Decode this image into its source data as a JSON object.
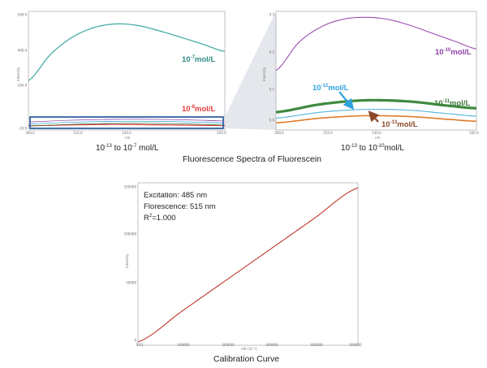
{
  "panel_left": {
    "caption": {
      "pre": "10",
      "e1": "-13",
      "mid": " to 10",
      "e2": "-7",
      "post": " mol/L"
    },
    "label_top": {
      "base": "10",
      "exp": "-7",
      "unit": "mol/L",
      "color": "#2f8a85"
    },
    "label_low": {
      "base": "10",
      "exp": "-8",
      "unit": "mol/L",
      "color": "#e03a3a"
    },
    "y_ticks": [
      "500.0",
      "400.0",
      "200.0",
      "-10.0"
    ],
    "x_ticks": [
      "500.0",
      "515.0",
      "530.0",
      "545.0"
    ],
    "ylabel": "Intensity",
    "xlabel": "nm",
    "zoom_box_color": "#1a4f96"
  },
  "panel_right": {
    "caption": {
      "pre": "10",
      "e1": "-13",
      "mid": " to 10",
      "e2": "-10",
      "post": "mol/L"
    },
    "labels": [
      {
        "base": "10",
        "exp": "-10",
        "unit": "mol/L",
        "color": "#8e3fa6"
      },
      {
        "base": "10",
        "exp": "-12",
        "unit": "mol/L",
        "color": "#2ea3dd"
      },
      {
        "base": "10",
        "exp": "-11",
        "unit": "mol/L",
        "color": "#3c7a3c"
      },
      {
        "base": "10",
        "exp": "-13",
        "unit": "mol/L",
        "color": "#8b4a2a"
      }
    ],
    "y_ticks": [
      "0.3",
      "0.2",
      "0.1",
      "0.0"
    ],
    "x_ticks": [
      "500.0",
      "515.0",
      "530.0",
      "545.0"
    ],
    "ylabel": "Intensity",
    "xlabel": "nm"
  },
  "main_title": "Fluorescence Spectra of Fluorescein",
  "calibration": {
    "notes": {
      "excitation": "Excitation: 485 nm",
      "florescence": "Florescence: 515 nm",
      "r2_pre": "R",
      "r2_exp": "2",
      "r2_post": "=1.000"
    },
    "y_ticks": [
      "150000",
      "100000",
      "50000",
      "0"
    ],
    "x_ticks": [
      "0.01",
      "100000",
      "200000",
      "300000",
      "400000",
      "500000"
    ],
    "ylabel": "Intensity",
    "xlabel": "nM (10⁻⁹)",
    "caption": "Calibration Curve",
    "line_color": "#c0392b"
  },
  "chart_data": [
    {
      "type": "line",
      "title": "",
      "xlabel": "nm",
      "ylabel": "Intensity",
      "xlim": [
        500,
        545
      ],
      "ylim": [
        -10,
        500
      ],
      "series": [
        {
          "name": "10-7mol/L",
          "x": [
            500,
            505,
            510,
            515,
            520,
            525,
            530,
            535,
            540,
            545
          ],
          "y": [
            210,
            330,
            410,
            455,
            472,
            465,
            440,
            410,
            378,
            345
          ]
        },
        {
          "name": "10-8mol/L",
          "x": [
            500,
            510,
            520,
            530,
            545
          ],
          "y": [
            2,
            6,
            8,
            6,
            3
          ]
        }
      ]
    },
    {
      "type": "line",
      "title": "",
      "xlabel": "nm",
      "ylabel": "Intensity",
      "xlim": [
        500,
        545
      ],
      "ylim": [
        0,
        0.3
      ],
      "series": [
        {
          "name": "10-10mol/L",
          "x": [
            500,
            505,
            510,
            515,
            520,
            525,
            530,
            535,
            540,
            545
          ],
          "y": [
            0.15,
            0.22,
            0.26,
            0.28,
            0.285,
            0.28,
            0.265,
            0.245,
            0.225,
            0.205
          ]
        },
        {
          "name": "10-11mol/L",
          "x": [
            500,
            510,
            520,
            530,
            540,
            545
          ],
          "y": [
            0.045,
            0.065,
            0.075,
            0.072,
            0.06,
            0.055
          ]
        },
        {
          "name": "10-12mol/L",
          "x": [
            500,
            510,
            520,
            530,
            540,
            545
          ],
          "y": [
            0.03,
            0.045,
            0.052,
            0.05,
            0.04,
            0.035
          ]
        },
        {
          "name": "10-13mol/L",
          "x": [
            500,
            510,
            520,
            530,
            540,
            545
          ],
          "y": [
            0.018,
            0.03,
            0.036,
            0.034,
            0.026,
            0.022
          ]
        }
      ]
    },
    {
      "type": "line",
      "title": "Calibration Curve",
      "xlabel": "nM (10⁻⁹)",
      "ylabel": "Intensity",
      "xlim": [
        0,
        500000
      ],
      "ylim": [
        0,
        160000
      ],
      "series": [
        {
          "name": "",
          "x": [
            0,
            100000,
            200000,
            300000,
            400000,
            500000
          ],
          "y": [
            0,
            31000,
            62000,
            93000,
            124000,
            155000
          ]
        }
      ]
    }
  ]
}
